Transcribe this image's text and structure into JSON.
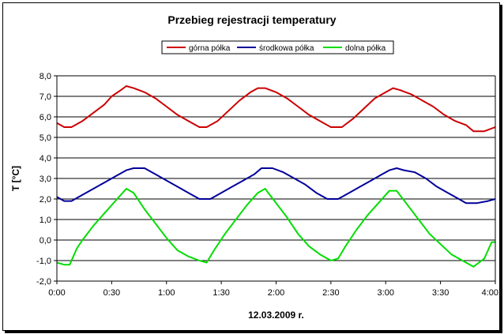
{
  "chart_data": {
    "type": "line",
    "title": "Przebieg rejestracji temperatury",
    "xlabel": "12.03.2009 r.",
    "ylabel": "T [°C]",
    "ylim": [
      -2.0,
      8.0
    ],
    "y_ticks": [
      "-2,0",
      "-1,0",
      "0,0",
      "1,0",
      "2,0",
      "3,0",
      "4,0",
      "5,0",
      "6,0",
      "7,0",
      "8,0"
    ],
    "x_ticks": [
      "0:00",
      "0:30",
      "1:00",
      "1:30",
      "2:00",
      "2:30",
      "3:00",
      "3:30",
      "4:00"
    ],
    "xlim_minutes": [
      0,
      240
    ],
    "grid": true,
    "legend_position": "top",
    "series": [
      {
        "name": "górna półka",
        "color": "#cc0000",
        "points": [
          [
            0,
            5.7
          ],
          [
            4,
            5.5
          ],
          [
            8,
            5.5
          ],
          [
            14,
            5.8
          ],
          [
            20,
            6.2
          ],
          [
            26,
            6.6
          ],
          [
            30,
            7.0
          ],
          [
            35,
            7.3
          ],
          [
            38,
            7.5
          ],
          [
            42,
            7.4
          ],
          [
            48,
            7.2
          ],
          [
            54,
            6.9
          ],
          [
            60,
            6.5
          ],
          [
            66,
            6.1
          ],
          [
            72,
            5.8
          ],
          [
            78,
            5.5
          ],
          [
            82,
            5.5
          ],
          [
            88,
            5.8
          ],
          [
            94,
            6.3
          ],
          [
            100,
            6.8
          ],
          [
            106,
            7.2
          ],
          [
            110,
            7.4
          ],
          [
            114,
            7.4
          ],
          [
            120,
            7.2
          ],
          [
            126,
            6.9
          ],
          [
            132,
            6.5
          ],
          [
            138,
            6.1
          ],
          [
            144,
            5.8
          ],
          [
            150,
            5.5
          ],
          [
            156,
            5.5
          ],
          [
            162,
            5.9
          ],
          [
            168,
            6.4
          ],
          [
            174,
            6.9
          ],
          [
            180,
            7.2
          ],
          [
            184,
            7.4
          ],
          [
            188,
            7.3
          ],
          [
            194,
            7.1
          ],
          [
            200,
            6.8
          ],
          [
            206,
            6.5
          ],
          [
            212,
            6.1
          ],
          [
            218,
            5.8
          ],
          [
            224,
            5.6
          ],
          [
            228,
            5.3
          ],
          [
            234,
            5.3
          ],
          [
            240,
            5.5
          ]
        ]
      },
      {
        "name": "środkowa półka",
        "color": "#000099",
        "points": [
          [
            0,
            2.1
          ],
          [
            4,
            1.9
          ],
          [
            8,
            1.9
          ],
          [
            14,
            2.2
          ],
          [
            20,
            2.5
          ],
          [
            26,
            2.8
          ],
          [
            32,
            3.1
          ],
          [
            38,
            3.4
          ],
          [
            42,
            3.5
          ],
          [
            48,
            3.5
          ],
          [
            54,
            3.2
          ],
          [
            60,
            2.9
          ],
          [
            66,
            2.6
          ],
          [
            72,
            2.3
          ],
          [
            78,
            2.0
          ],
          [
            84,
            2.0
          ],
          [
            90,
            2.3
          ],
          [
            96,
            2.6
          ],
          [
            102,
            2.9
          ],
          [
            108,
            3.2
          ],
          [
            112,
            3.5
          ],
          [
            118,
            3.5
          ],
          [
            124,
            3.3
          ],
          [
            130,
            3.0
          ],
          [
            136,
            2.7
          ],
          [
            142,
            2.3
          ],
          [
            148,
            2.0
          ],
          [
            154,
            2.0
          ],
          [
            160,
            2.3
          ],
          [
            166,
            2.6
          ],
          [
            172,
            2.9
          ],
          [
            178,
            3.2
          ],
          [
            182,
            3.4
          ],
          [
            186,
            3.5
          ],
          [
            190,
            3.4
          ],
          [
            196,
            3.3
          ],
          [
            202,
            3.0
          ],
          [
            208,
            2.6
          ],
          [
            214,
            2.3
          ],
          [
            220,
            2.0
          ],
          [
            224,
            1.8
          ],
          [
            230,
            1.8
          ],
          [
            236,
            1.9
          ],
          [
            240,
            2.0
          ]
        ]
      },
      {
        "name": "dolna półka",
        "color": "#00dd00",
        "points": [
          [
            0,
            -1.1
          ],
          [
            4,
            -1.2
          ],
          [
            7,
            -1.2
          ],
          [
            11,
            -0.4
          ],
          [
            14,
            0.0
          ],
          [
            20,
            0.7
          ],
          [
            26,
            1.3
          ],
          [
            32,
            1.9
          ],
          [
            38,
            2.5
          ],
          [
            42,
            2.3
          ],
          [
            48,
            1.5
          ],
          [
            54,
            0.8
          ],
          [
            60,
            0.1
          ],
          [
            66,
            -0.5
          ],
          [
            72,
            -0.8
          ],
          [
            78,
            -1.0
          ],
          [
            82,
            -1.1
          ],
          [
            86,
            -0.5
          ],
          [
            92,
            0.3
          ],
          [
            98,
            1.0
          ],
          [
            104,
            1.7
          ],
          [
            110,
            2.3
          ],
          [
            114,
            2.5
          ],
          [
            120,
            1.8
          ],
          [
            126,
            1.1
          ],
          [
            132,
            0.3
          ],
          [
            138,
            -0.3
          ],
          [
            144,
            -0.7
          ],
          [
            150,
            -1.0
          ],
          [
            154,
            -0.9
          ],
          [
            158,
            -0.3
          ],
          [
            164,
            0.5
          ],
          [
            170,
            1.2
          ],
          [
            176,
            1.8
          ],
          [
            182,
            2.4
          ],
          [
            186,
            2.4
          ],
          [
            192,
            1.7
          ],
          [
            198,
            1.0
          ],
          [
            204,
            0.3
          ],
          [
            210,
            -0.2
          ],
          [
            216,
            -0.7
          ],
          [
            222,
            -1.0
          ],
          [
            228,
            -1.3
          ],
          [
            234,
            -0.9
          ],
          [
            238,
            -0.1
          ],
          [
            240,
            -0.1
          ]
        ]
      }
    ]
  }
}
